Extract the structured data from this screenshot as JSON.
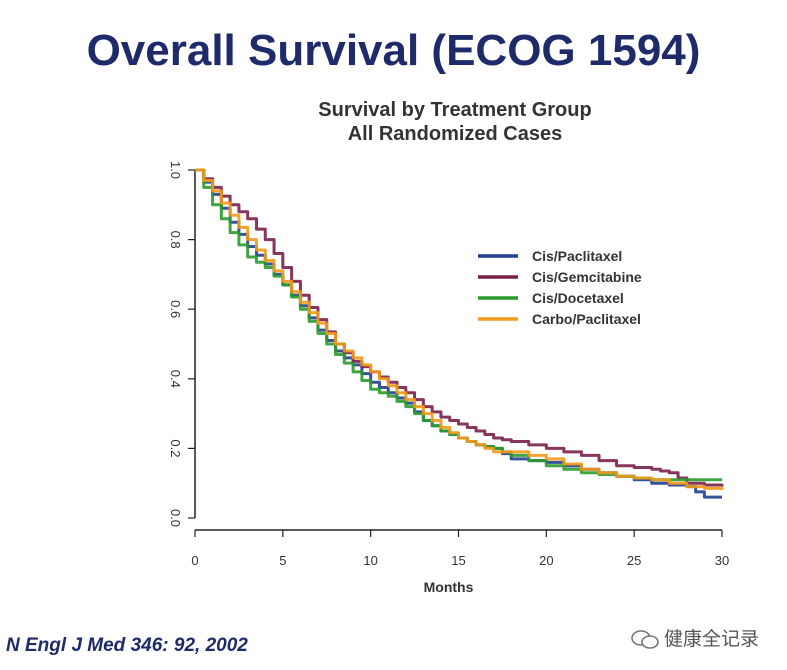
{
  "slide": {
    "title": "Overall Survival (ECOG 1594)",
    "citation": "N Engl J Med 346: 92, 2002",
    "watermark": "健康全记录"
  },
  "chart_data": {
    "type": "line",
    "title": "Survival by Treatment Group",
    "subtitle": "All Randomized Cases",
    "xlabel": "Months",
    "ylabel": "",
    "xlim": [
      0,
      30
    ],
    "ylim": [
      0,
      1
    ],
    "xticks": [
      0,
      5,
      10,
      15,
      20,
      25,
      30
    ],
    "yticks": [
      "0.0",
      "0.2",
      "0.4",
      "0.6",
      "0.8",
      "1.0"
    ],
    "grid": false,
    "legend_position": "right",
    "series": [
      {
        "name": "Cis/Paclitaxel",
        "color": "#1f3f8f",
        "x": [
          0,
          1,
          2,
          3,
          4,
          5,
          6,
          7,
          8,
          9,
          10,
          11,
          12,
          13,
          14,
          15,
          16,
          17,
          18,
          20,
          22,
          24,
          26,
          28,
          29,
          30
        ],
        "y": [
          1.0,
          0.93,
          0.85,
          0.78,
          0.73,
          0.67,
          0.61,
          0.54,
          0.48,
          0.44,
          0.39,
          0.36,
          0.33,
          0.28,
          0.25,
          0.23,
          0.21,
          0.2,
          0.17,
          0.16,
          0.14,
          0.12,
          0.1,
          0.09,
          0.06,
          0.06
        ]
      },
      {
        "name": "Cis/Gemcitabine",
        "color": "#7b1f4b",
        "x": [
          0,
          1,
          2,
          3,
          4,
          5,
          6,
          7,
          8,
          9,
          10,
          11,
          12,
          13,
          14,
          15,
          16,
          17,
          18,
          20,
          22,
          24,
          26,
          27,
          28,
          30
        ],
        "y": [
          1.0,
          0.95,
          0.9,
          0.86,
          0.8,
          0.72,
          0.64,
          0.57,
          0.5,
          0.45,
          0.42,
          0.39,
          0.36,
          0.32,
          0.29,
          0.27,
          0.25,
          0.23,
          0.22,
          0.2,
          0.18,
          0.15,
          0.14,
          0.13,
          0.1,
          0.09
        ]
      },
      {
        "name": "Cis/Docetaxel",
        "color": "#2b9a2b",
        "x": [
          0,
          1,
          2,
          3,
          4,
          5,
          6,
          7,
          8,
          9,
          10,
          11,
          12,
          13,
          14,
          15,
          16,
          17,
          18,
          20,
          22,
          24,
          26,
          28,
          30
        ],
        "y": [
          1.0,
          0.9,
          0.82,
          0.75,
          0.72,
          0.67,
          0.6,
          0.53,
          0.47,
          0.42,
          0.37,
          0.35,
          0.32,
          0.28,
          0.25,
          0.23,
          0.21,
          0.2,
          0.18,
          0.15,
          0.13,
          0.12,
          0.11,
          0.11,
          0.11
        ]
      },
      {
        "name": "Carbo/Paclitaxel",
        "color": "#f29a1a",
        "x": [
          0,
          1,
          2,
          3,
          4,
          5,
          6,
          7,
          8,
          9,
          10,
          11,
          12,
          13,
          14,
          15,
          16,
          17,
          18,
          20,
          22,
          24,
          26,
          28,
          30
        ],
        "y": [
          1.0,
          0.94,
          0.87,
          0.8,
          0.74,
          0.68,
          0.62,
          0.56,
          0.5,
          0.46,
          0.42,
          0.38,
          0.34,
          0.3,
          0.26,
          0.23,
          0.21,
          0.19,
          0.19,
          0.17,
          0.14,
          0.12,
          0.11,
          0.09,
          0.08
        ]
      }
    ]
  }
}
